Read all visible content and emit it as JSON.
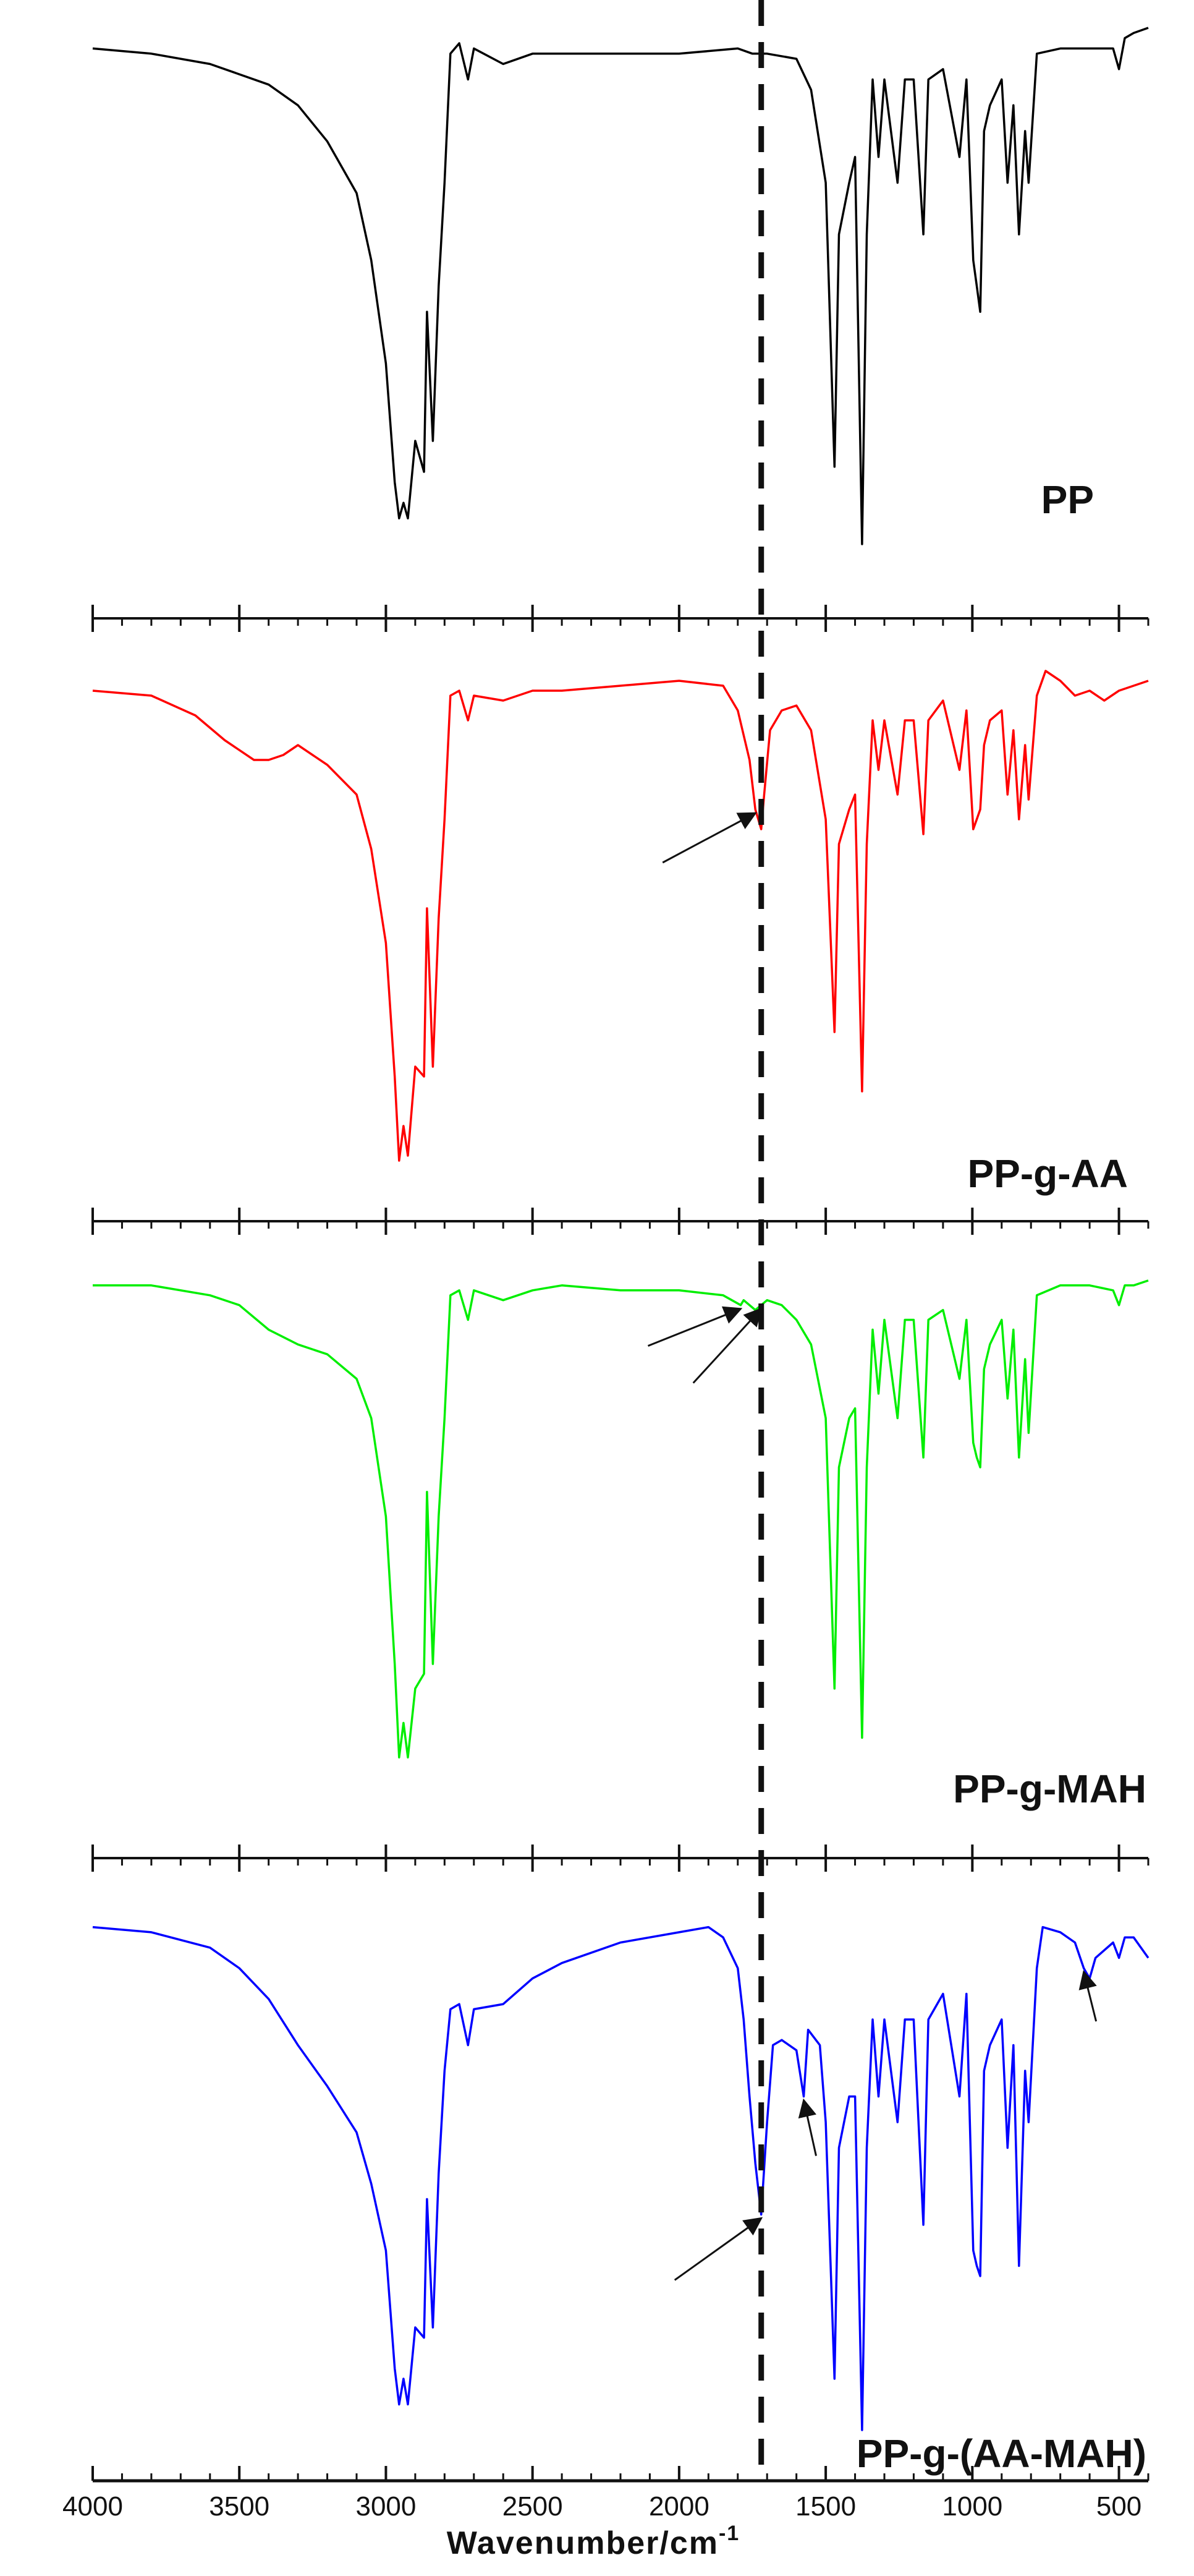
{
  "chart_data": {
    "type": "line",
    "xlabel": "Wavenumber/cm",
    "xlabel_superscript": "-1",
    "xlim": [
      4000,
      400
    ],
    "x_reversed": true,
    "x_ticks": [
      4000,
      3500,
      3000,
      2500,
      2000,
      1500,
      1000,
      500
    ],
    "reference_line_x": 1720,
    "series": [
      {
        "name": "PP",
        "color": "#000000",
        "points": [
          [
            4000,
            0.04
          ],
          [
            3800,
            0.05
          ],
          [
            3600,
            0.07
          ],
          [
            3500,
            0.09
          ],
          [
            3400,
            0.11
          ],
          [
            3300,
            0.15
          ],
          [
            3200,
            0.22
          ],
          [
            3100,
            0.32
          ],
          [
            3050,
            0.45
          ],
          [
            3000,
            0.65
          ],
          [
            2970,
            0.88
          ],
          [
            2955,
            0.95
          ],
          [
            2940,
            0.92
          ],
          [
            2925,
            0.95
          ],
          [
            2900,
            0.8
          ],
          [
            2870,
            0.86
          ],
          [
            2860,
            0.55
          ],
          [
            2840,
            0.8
          ],
          [
            2820,
            0.5
          ],
          [
            2800,
            0.3
          ],
          [
            2780,
            0.05
          ],
          [
            2750,
            0.03
          ],
          [
            2720,
            0.1
          ],
          [
            2700,
            0.04
          ],
          [
            2600,
            0.07
          ],
          [
            2500,
            0.05
          ],
          [
            2400,
            0.05
          ],
          [
            2200,
            0.05
          ],
          [
            2000,
            0.05
          ],
          [
            1800,
            0.04
          ],
          [
            1750,
            0.05
          ],
          [
            1700,
            0.05
          ],
          [
            1600,
            0.06
          ],
          [
            1550,
            0.12
          ],
          [
            1500,
            0.3
          ],
          [
            1470,
            0.85
          ],
          [
            1455,
            0.4
          ],
          [
            1420,
            0.3
          ],
          [
            1400,
            0.25
          ],
          [
            1376,
            1.0
          ],
          [
            1360,
            0.4
          ],
          [
            1340,
            0.1
          ],
          [
            1320,
            0.25
          ],
          [
            1300,
            0.1
          ],
          [
            1255,
            0.3
          ],
          [
            1230,
            0.1
          ],
          [
            1200,
            0.1
          ],
          [
            1167,
            0.4
          ],
          [
            1150,
            0.1
          ],
          [
            1100,
            0.08
          ],
          [
            1044,
            0.25
          ],
          [
            1020,
            0.1
          ],
          [
            997,
            0.45
          ],
          [
            985,
            0.5
          ],
          [
            973,
            0.55
          ],
          [
            960,
            0.2
          ],
          [
            940,
            0.15
          ],
          [
            900,
            0.1
          ],
          [
            880,
            0.3
          ],
          [
            860,
            0.15
          ],
          [
            841,
            0.4
          ],
          [
            820,
            0.2
          ],
          [
            808,
            0.3
          ],
          [
            780,
            0.05
          ],
          [
            700,
            0.04
          ],
          [
            600,
            0.04
          ],
          [
            520,
            0.04
          ],
          [
            500,
            0.08
          ],
          [
            480,
            0.02
          ],
          [
            450,
            0.01
          ],
          [
            400,
            0.0
          ]
        ]
      },
      {
        "name": "PP-g-AA",
        "color": "#ff0000",
        "points": [
          [
            4000,
            0.04
          ],
          [
            3800,
            0.05
          ],
          [
            3650,
            0.09
          ],
          [
            3550,
            0.14
          ],
          [
            3450,
            0.18
          ],
          [
            3400,
            0.18
          ],
          [
            3350,
            0.17
          ],
          [
            3300,
            0.15
          ],
          [
            3200,
            0.19
          ],
          [
            3100,
            0.25
          ],
          [
            3050,
            0.36
          ],
          [
            3000,
            0.55
          ],
          [
            2970,
            0.82
          ],
          [
            2955,
            0.99
          ],
          [
            2940,
            0.92
          ],
          [
            2925,
            0.98
          ],
          [
            2900,
            0.8
          ],
          [
            2870,
            0.82
          ],
          [
            2860,
            0.48
          ],
          [
            2840,
            0.8
          ],
          [
            2820,
            0.5
          ],
          [
            2800,
            0.3
          ],
          [
            2780,
            0.05
          ],
          [
            2750,
            0.04
          ],
          [
            2720,
            0.1
          ],
          [
            2700,
            0.05
          ],
          [
            2600,
            0.06
          ],
          [
            2500,
            0.04
          ],
          [
            2400,
            0.04
          ],
          [
            2200,
            0.03
          ],
          [
            2000,
            0.02
          ],
          [
            1850,
            0.03
          ],
          [
            1800,
            0.08
          ],
          [
            1760,
            0.18
          ],
          [
            1740,
            0.28
          ],
          [
            1720,
            0.32
          ],
          [
            1710,
            0.25
          ],
          [
            1690,
            0.12
          ],
          [
            1650,
            0.08
          ],
          [
            1600,
            0.07
          ],
          [
            1550,
            0.12
          ],
          [
            1500,
            0.3
          ],
          [
            1470,
            0.73
          ],
          [
            1455,
            0.35
          ],
          [
            1420,
            0.28
          ],
          [
            1400,
            0.25
          ],
          [
            1376,
            0.85
          ],
          [
            1360,
            0.35
          ],
          [
            1340,
            0.1
          ],
          [
            1320,
            0.2
          ],
          [
            1300,
            0.1
          ],
          [
            1255,
            0.25
          ],
          [
            1230,
            0.1
          ],
          [
            1200,
            0.1
          ],
          [
            1167,
            0.33
          ],
          [
            1150,
            0.1
          ],
          [
            1100,
            0.06
          ],
          [
            1044,
            0.2
          ],
          [
            1020,
            0.08
          ],
          [
            997,
            0.32
          ],
          [
            985,
            0.3
          ],
          [
            973,
            0.28
          ],
          [
            960,
            0.15
          ],
          [
            940,
            0.1
          ],
          [
            900,
            0.08
          ],
          [
            880,
            0.25
          ],
          [
            860,
            0.12
          ],
          [
            841,
            0.3
          ],
          [
            820,
            0.15
          ],
          [
            808,
            0.26
          ],
          [
            780,
            0.05
          ],
          [
            750,
            0.0
          ],
          [
            700,
            0.02
          ],
          [
            650,
            0.05
          ],
          [
            600,
            0.04
          ],
          [
            550,
            0.06
          ],
          [
            500,
            0.04
          ],
          [
            450,
            0.03
          ],
          [
            400,
            0.02
          ]
        ]
      },
      {
        "name": "PP-g-MAH",
        "color": "#00ee00",
        "points": [
          [
            4000,
            0.03
          ],
          [
            3800,
            0.03
          ],
          [
            3600,
            0.05
          ],
          [
            3500,
            0.07
          ],
          [
            3400,
            0.12
          ],
          [
            3300,
            0.15
          ],
          [
            3200,
            0.17
          ],
          [
            3100,
            0.22
          ],
          [
            3050,
            0.3
          ],
          [
            3000,
            0.5
          ],
          [
            2970,
            0.8
          ],
          [
            2955,
            0.99
          ],
          [
            2940,
            0.92
          ],
          [
            2925,
            0.99
          ],
          [
            2900,
            0.85
          ],
          [
            2870,
            0.82
          ],
          [
            2860,
            0.45
          ],
          [
            2840,
            0.8
          ],
          [
            2820,
            0.5
          ],
          [
            2800,
            0.3
          ],
          [
            2780,
            0.05
          ],
          [
            2750,
            0.04
          ],
          [
            2720,
            0.1
          ],
          [
            2700,
            0.04
          ],
          [
            2600,
            0.06
          ],
          [
            2500,
            0.04
          ],
          [
            2400,
            0.03
          ],
          [
            2200,
            0.04
          ],
          [
            2000,
            0.04
          ],
          [
            1850,
            0.05
          ],
          [
            1790,
            0.07
          ],
          [
            1780,
            0.06
          ],
          [
            1740,
            0.08
          ],
          [
            1720,
            0.07
          ],
          [
            1700,
            0.06
          ],
          [
            1650,
            0.07
          ],
          [
            1600,
            0.1
          ],
          [
            1550,
            0.15
          ],
          [
            1500,
            0.3
          ],
          [
            1470,
            0.85
          ],
          [
            1455,
            0.4
          ],
          [
            1420,
            0.3
          ],
          [
            1400,
            0.28
          ],
          [
            1376,
            0.95
          ],
          [
            1360,
            0.4
          ],
          [
            1340,
            0.12
          ],
          [
            1320,
            0.25
          ],
          [
            1300,
            0.1
          ],
          [
            1255,
            0.3
          ],
          [
            1230,
            0.1
          ],
          [
            1200,
            0.1
          ],
          [
            1167,
            0.38
          ],
          [
            1150,
            0.1
          ],
          [
            1100,
            0.08
          ],
          [
            1044,
            0.22
          ],
          [
            1020,
            0.1
          ],
          [
            997,
            0.35
          ],
          [
            985,
            0.38
          ],
          [
            973,
            0.4
          ],
          [
            960,
            0.2
          ],
          [
            940,
            0.15
          ],
          [
            900,
            0.1
          ],
          [
            880,
            0.26
          ],
          [
            860,
            0.12
          ],
          [
            841,
            0.38
          ],
          [
            820,
            0.18
          ],
          [
            808,
            0.33
          ],
          [
            780,
            0.05
          ],
          [
            700,
            0.03
          ],
          [
            600,
            0.03
          ],
          [
            520,
            0.04
          ],
          [
            500,
            0.07
          ],
          [
            480,
            0.03
          ],
          [
            450,
            0.03
          ],
          [
            400,
            0.02
          ]
        ]
      },
      {
        "name": "PP-g-(AA-MAH)",
        "color": "#0000ff",
        "points": [
          [
            4000,
            0.02
          ],
          [
            3800,
            0.03
          ],
          [
            3600,
            0.06
          ],
          [
            3500,
            0.1
          ],
          [
            3400,
            0.16
          ],
          [
            3300,
            0.25
          ],
          [
            3200,
            0.33
          ],
          [
            3100,
            0.42
          ],
          [
            3050,
            0.52
          ],
          [
            3000,
            0.65
          ],
          [
            2970,
            0.88
          ],
          [
            2955,
            0.95
          ],
          [
            2940,
            0.9
          ],
          [
            2925,
            0.95
          ],
          [
            2900,
            0.8
          ],
          [
            2870,
            0.82
          ],
          [
            2860,
            0.55
          ],
          [
            2840,
            0.8
          ],
          [
            2820,
            0.5
          ],
          [
            2800,
            0.3
          ],
          [
            2780,
            0.18
          ],
          [
            2750,
            0.17
          ],
          [
            2720,
            0.25
          ],
          [
            2700,
            0.18
          ],
          [
            2600,
            0.17
          ],
          [
            2500,
            0.12
          ],
          [
            2400,
            0.09
          ],
          [
            2200,
            0.05
          ],
          [
            2000,
            0.03
          ],
          [
            1900,
            0.02
          ],
          [
            1850,
            0.04
          ],
          [
            1800,
            0.1
          ],
          [
            1780,
            0.2
          ],
          [
            1760,
            0.35
          ],
          [
            1740,
            0.48
          ],
          [
            1720,
            0.58
          ],
          [
            1700,
            0.4
          ],
          [
            1680,
            0.25
          ],
          [
            1650,
            0.24
          ],
          [
            1600,
            0.26
          ],
          [
            1575,
            0.35
          ],
          [
            1560,
            0.22
          ],
          [
            1520,
            0.25
          ],
          [
            1500,
            0.4
          ],
          [
            1470,
            0.9
          ],
          [
            1455,
            0.45
          ],
          [
            1420,
            0.35
          ],
          [
            1400,
            0.35
          ],
          [
            1376,
            1.0
          ],
          [
            1360,
            0.45
          ],
          [
            1340,
            0.2
          ],
          [
            1320,
            0.35
          ],
          [
            1300,
            0.2
          ],
          [
            1255,
            0.4
          ],
          [
            1230,
            0.2
          ],
          [
            1200,
            0.2
          ],
          [
            1167,
            0.6
          ],
          [
            1150,
            0.2
          ],
          [
            1100,
            0.15
          ],
          [
            1044,
            0.35
          ],
          [
            1020,
            0.15
          ],
          [
            997,
            0.65
          ],
          [
            985,
            0.68
          ],
          [
            973,
            0.7
          ],
          [
            960,
            0.3
          ],
          [
            940,
            0.25
          ],
          [
            900,
            0.2
          ],
          [
            880,
            0.45
          ],
          [
            860,
            0.25
          ],
          [
            841,
            0.68
          ],
          [
            820,
            0.3
          ],
          [
            808,
            0.4
          ],
          [
            780,
            0.1
          ],
          [
            760,
            0.02
          ],
          [
            700,
            0.03
          ],
          [
            650,
            0.05
          ],
          [
            620,
            0.1
          ],
          [
            600,
            0.12
          ],
          [
            580,
            0.08
          ],
          [
            520,
            0.05
          ],
          [
            500,
            0.08
          ],
          [
            480,
            0.04
          ],
          [
            450,
            0.04
          ],
          [
            400,
            0.08
          ]
        ]
      }
    ],
    "annotations": [
      {
        "series": "PP-g-AA",
        "type": "arrow",
        "x": 1740
      },
      {
        "series": "PP-g-MAH",
        "type": "arrow",
        "x": 1790
      },
      {
        "series": "PP-g-MAH",
        "type": "arrow",
        "x": 1720
      },
      {
        "series": "PP-g-(AA-MAH)",
        "type": "arrow",
        "x": 1720
      },
      {
        "series": "PP-g-(AA-MAH)",
        "type": "arrow",
        "x": 1575
      },
      {
        "series": "PP-g-(AA-MAH)",
        "type": "arrow",
        "x": 620
      }
    ],
    "grid": false,
    "legend": "none"
  }
}
